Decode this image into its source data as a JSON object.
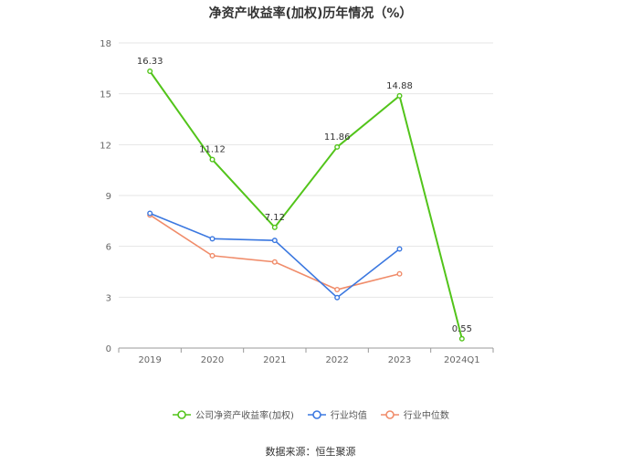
{
  "chart_data": {
    "type": "line",
    "title": "净资产收益率(加权)历年情况（%）",
    "categories": [
      "2019",
      "2020",
      "2021",
      "2022",
      "2023",
      "2024Q1"
    ],
    "ylim": [
      0,
      18
    ],
    "yticks": [
      0,
      3,
      6,
      9,
      12,
      15,
      18
    ],
    "grid": true,
    "legend_position": "bottom",
    "series": [
      {
        "name": "公司净资产收益率(加权)",
        "color": "#52c41a",
        "values": [
          16.33,
          11.12,
          7.12,
          11.86,
          14.88,
          0.55
        ],
        "labels": [
          "16.33",
          "11.12",
          "7.12",
          "11.86",
          "14.88",
          "0.55"
        ]
      },
      {
        "name": "行业均值",
        "color": "#3b78e0",
        "values": [
          7.95,
          6.45,
          6.35,
          2.98,
          5.85,
          null
        ]
      },
      {
        "name": "行业中位数",
        "color": "#f08c6a",
        "values": [
          7.85,
          5.45,
          5.08,
          3.45,
          4.38,
          null
        ]
      }
    ]
  },
  "source": "数据来源：恒生聚源"
}
